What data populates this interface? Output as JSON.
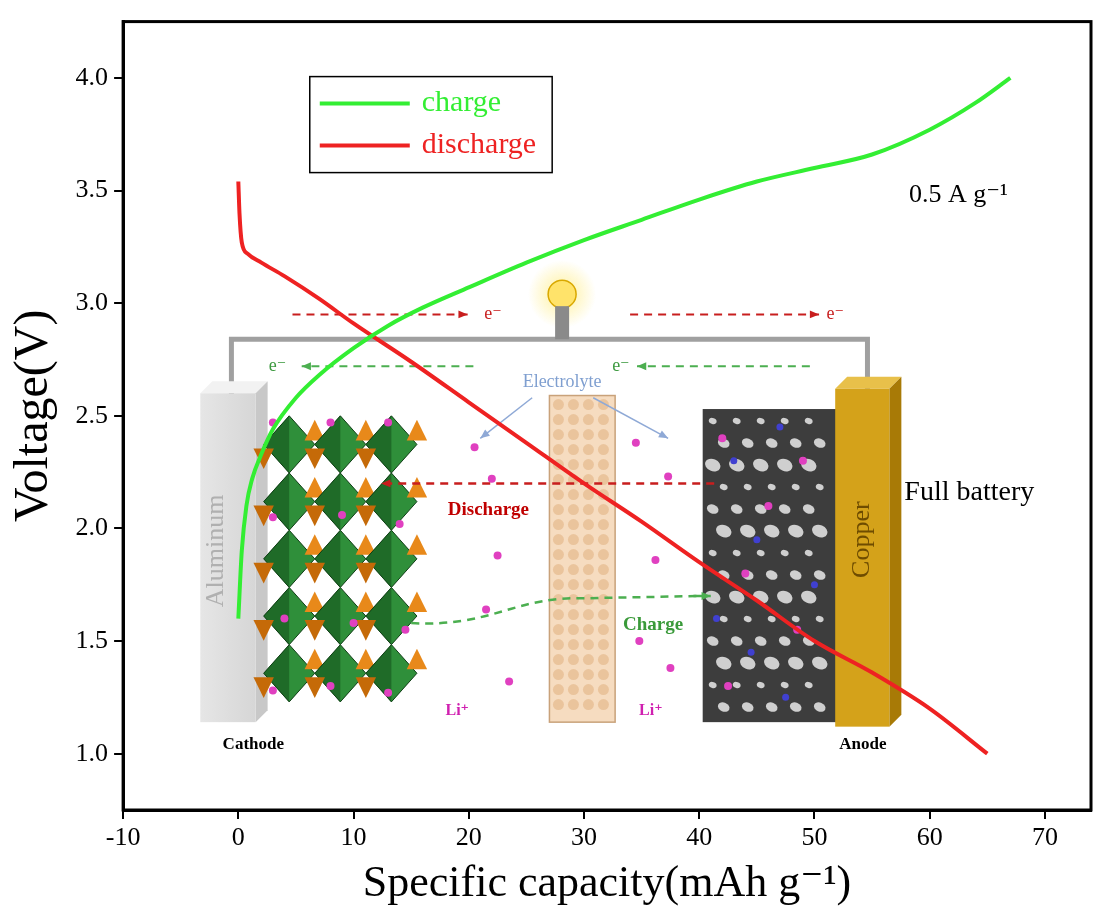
{
  "chart_data": {
    "type": "line",
    "x_label": "Specific capacity(mAh g⁻¹)",
    "y_label": "Voltage(V)",
    "xlim": [
      -10,
      74
    ],
    "ylim": [
      0.75,
      4.25
    ],
    "xticks": [
      -10,
      0,
      10,
      20,
      30,
      40,
      50,
      60,
      70
    ],
    "yticks": [
      {
        "value": 1,
        "label": "1.0"
      },
      1.5,
      {
        "value": 2,
        "label": "2.0"
      },
      2.5,
      {
        "value": 3,
        "label": "3.0"
      },
      3.5,
      {
        "value": 4,
        "label": "4.0"
      }
    ],
    "grid": false,
    "legend": "upper left",
    "series": [
      {
        "name": "charge",
        "color": "#33ee33",
        "x": [
          0,
          0.3,
          0.7,
          1.2,
          2,
          3,
          5,
          7,
          10,
          13,
          16,
          20,
          25,
          30,
          35,
          40,
          45,
          50,
          55,
          60,
          64,
          67
        ],
        "values": [
          1.6,
          1.9,
          2.1,
          2.22,
          2.33,
          2.44,
          2.58,
          2.68,
          2.8,
          2.9,
          2.98,
          3.07,
          3.18,
          3.28,
          3.37,
          3.46,
          3.54,
          3.6,
          3.66,
          3.77,
          3.89,
          4.0
        ]
      },
      {
        "name": "discharge",
        "color": "#ee2222",
        "x": [
          0,
          0.1,
          0.3,
          0.8,
          2,
          4,
          7,
          10,
          15,
          20,
          25,
          30,
          35,
          40,
          45,
          50,
          55,
          60,
          65
        ],
        "values": [
          3.54,
          3.4,
          3.27,
          3.22,
          3.18,
          3.12,
          3.02,
          2.91,
          2.74,
          2.56,
          2.38,
          2.2,
          2.03,
          1.85,
          1.68,
          1.5,
          1.36,
          1.2,
          1.0
        ]
      }
    ],
    "annotations": [
      {
        "text": "0.5 A g⁻¹"
      },
      {
        "text": "Full battery"
      }
    ],
    "inset": {
      "cathode": "Cathode",
      "anode": "Anode",
      "cathode_collector": "Aluminum",
      "anode_collector": "Copper",
      "electrolyte": "Electrolyte",
      "discharge": "Discharge",
      "charge": "Charge",
      "ion": "Li⁺",
      "electron": "e⁻"
    }
  }
}
